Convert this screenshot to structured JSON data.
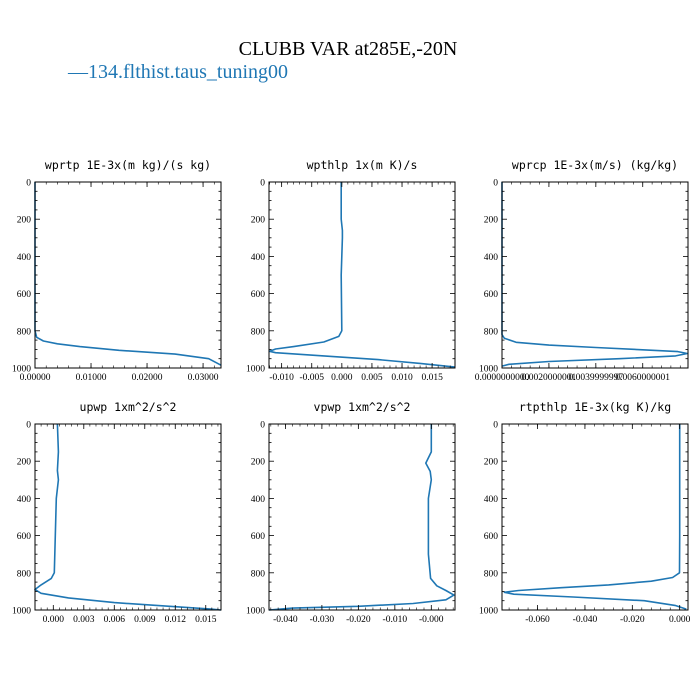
{
  "figure": {
    "title": "CLUBB VAR at285E,-20N",
    "legend": {
      "marker": "—",
      "label": "134.flthist.taus_tuning00",
      "color": "#1f77b4"
    }
  },
  "chart_data": [
    {
      "type": "line",
      "title": "wprtp  1E-3x(m kg)/(s kg)",
      "xlim": [
        0,
        0.0332
      ],
      "ylim": [
        1000,
        0
      ],
      "xticks": [
        0,
        0.01,
        0.02,
        0.03
      ],
      "xtick_labels": [
        "0.00000",
        "0.01000",
        "0.02000",
        "0.03000"
      ],
      "yticks": [
        0,
        200,
        400,
        600,
        800,
        1000
      ],
      "ytick_labels": [
        "0",
        "200",
        "400",
        "600",
        "800",
        "1000"
      ],
      "series": [
        {
          "color": "#1f77b4",
          "x": [
            0,
            0,
            0,
            0,
            0.0003,
            0.0015,
            0.004,
            0.008,
            0.015,
            0.025,
            0.031,
            0.0332
          ],
          "y": [
            0,
            200,
            500,
            800,
            835,
            855,
            870,
            885,
            905,
            925,
            950,
            985
          ]
        }
      ]
    },
    {
      "type": "line",
      "title": "wpthlp  1x(m K)/s",
      "xlim": [
        -0.0121,
        0.0188
      ],
      "ylim": [
        1000,
        0
      ],
      "xticks": [
        -0.01,
        -0.005,
        0,
        0.005,
        0.01,
        0.015
      ],
      "xtick_labels": [
        "-0.010",
        "-0.005",
        "0.000",
        "0.005",
        "0.010",
        "0.015"
      ],
      "yticks": [
        0,
        200,
        400,
        600,
        800,
        1000
      ],
      "ytick_labels": [
        "0",
        "200",
        "400",
        "600",
        "800",
        "1000"
      ],
      "series": [
        {
          "color": "#1f77b4",
          "x": [
            -0.0001,
            -0.0001,
            0.0001,
            0.0001,
            -0.0001,
            0,
            -0.0005,
            -0.003,
            -0.008,
            -0.011,
            -0.012,
            -0.011,
            -0.003,
            0.006,
            0.013,
            0.0188
          ],
          "y": [
            0,
            200,
            260,
            300,
            500,
            800,
            830,
            860,
            885,
            898,
            910,
            918,
            935,
            955,
            975,
            995
          ]
        }
      ]
    },
    {
      "type": "line",
      "title": "wprcp  1E-3x(m/s) (kg/kg)",
      "xlim": [
        0,
        0.00793
      ],
      "ylim": [
        1000,
        0
      ],
      "xticks": [
        0,
        0.002,
        0.004,
        0.006
      ],
      "xtick_labels": [
        "0.0000000000",
        "0.0020000001",
        "0.0039999997",
        "0.0060000001"
      ],
      "yticks": [
        0,
        200,
        400,
        600,
        800,
        1000
      ],
      "ytick_labels": [
        "0",
        "200",
        "400",
        "600",
        "800",
        "1000"
      ],
      "series": [
        {
          "color": "#1f77b4",
          "x": [
            0,
            0,
            0,
            0.0001,
            0.0006,
            0.002,
            0.004,
            0.006,
            0.0075,
            0.0079,
            0.0074,
            0.005,
            0.002,
            0.0003,
            0
          ],
          "y": [
            0,
            400,
            820,
            840,
            862,
            877,
            890,
            902,
            912,
            922,
            935,
            950,
            965,
            980,
            990
          ]
        }
      ]
    },
    {
      "type": "line",
      "title": "upwp  1xm^2/s^2",
      "xlim": [
        -0.0018,
        0.0165
      ],
      "ylim": [
        1000,
        0
      ],
      "xticks": [
        0,
        0.003,
        0.006,
        0.009,
        0.012,
        0.015
      ],
      "xtick_labels": [
        "0.000",
        "0.003",
        "0.006",
        "0.009",
        "0.012",
        "0.015"
      ],
      "yticks": [
        0,
        200,
        400,
        600,
        800,
        1000
      ],
      "ytick_labels": [
        "0",
        "200",
        "400",
        "600",
        "800",
        "1000"
      ],
      "series": [
        {
          "color": "#1f77b4",
          "x": [
            0.0004,
            0.0005,
            0.0004,
            0.0005,
            0.0003,
            0.0002,
            0.0001,
            -0.0002,
            -0.0012,
            -0.0018,
            -0.0012,
            0.0015,
            0.006,
            0.012,
            0.0155,
            0.0165
          ],
          "y": [
            0,
            150,
            250,
            300,
            400,
            600,
            800,
            830,
            865,
            890,
            910,
            935,
            960,
            982,
            995,
            1000
          ]
        }
      ]
    },
    {
      "type": "line",
      "title": "vpwp  1xm^2/s^2",
      "xlim": [
        -0.0445,
        0.0065
      ],
      "ylim": [
        1000,
        0
      ],
      "xticks": [
        -0.04,
        -0.03,
        -0.02,
        -0.01,
        0
      ],
      "xtick_labels": [
        "-0.040",
        "-0.030",
        "-0.020",
        "-0.010",
        "-0.000"
      ],
      "yticks": [
        0,
        200,
        400,
        600,
        800,
        1000
      ],
      "ytick_labels": [
        "0",
        "200",
        "400",
        "600",
        "800",
        "1000"
      ],
      "series": [
        {
          "color": "#1f77b4",
          "x": [
            0,
            0,
            -0.0015,
            -0.0003,
            0,
            -0.0008,
            -0.0008,
            -0.0002,
            0.0015,
            0.004,
            0.0062,
            0.004,
            -0.005,
            -0.02,
            -0.038,
            -0.0445
          ],
          "y": [
            0,
            150,
            210,
            255,
            300,
            400,
            700,
            830,
            870,
            895,
            920,
            945,
            965,
            980,
            990,
            1000
          ]
        }
      ]
    },
    {
      "type": "line",
      "title": "rtpthlp  1E-3x(kg K)/kg",
      "xlim": [
        -0.075,
        0.0035
      ],
      "ylim": [
        1000,
        0
      ],
      "xticks": [
        -0.06,
        -0.04,
        -0.02,
        0
      ],
      "xtick_labels": [
        "-0.060",
        "-0.040",
        "-0.020",
        "0.000"
      ],
      "yticks": [
        0,
        200,
        400,
        600,
        800,
        1000
      ],
      "ytick_labels": [
        "0",
        "200",
        "400",
        "600",
        "800",
        "1000"
      ],
      "series": [
        {
          "color": "#1f77b4",
          "x": [
            0,
            0,
            0,
            -0.0001,
            -0.003,
            -0.012,
            -0.03,
            -0.05,
            -0.068,
            -0.074,
            -0.07,
            -0.045,
            -0.015,
            -0.002,
            0.0028
          ],
          "y": [
            0,
            300,
            600,
            800,
            825,
            845,
            865,
            880,
            895,
            905,
            915,
            930,
            950,
            975,
            995
          ]
        }
      ]
    }
  ]
}
